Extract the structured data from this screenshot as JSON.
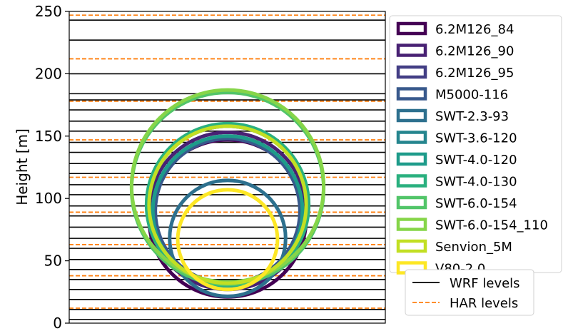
{
  "chart_data": {
    "type": "line",
    "ylabel": "Height [m]",
    "ylim": [
      0,
      250
    ],
    "yticks": [
      0,
      50,
      100,
      150,
      200,
      250
    ],
    "ytick_labels": [
      "0",
      "50",
      "100",
      "150",
      "200",
      "250"
    ],
    "wrf_levels": [
      3,
      11,
      19,
      27,
      35,
      43,
      51,
      60,
      68,
      77,
      86,
      94,
      103,
      111,
      120,
      128,
      137,
      145,
      154,
      162,
      171,
      179,
      184,
      200,
      227,
      243
    ],
    "har_levels": [
      12,
      38,
      63,
      89,
      117,
      147,
      178,
      212,
      247
    ],
    "turbines": [
      {
        "name": "6.2M126_84",
        "hub_height": 84,
        "rotor_diameter": 126,
        "color": "#440154"
      },
      {
        "name": "6.2M126_90",
        "hub_height": 90,
        "rotor_diameter": 126,
        "color": "#482173"
      },
      {
        "name": "6.2M126_95",
        "hub_height": 95,
        "rotor_diameter": 126,
        "color": "#433e85"
      },
      {
        "name": "M5000-116",
        "hub_height": 90,
        "rotor_diameter": 116,
        "color": "#38598c"
      },
      {
        "name": "SWT-2.3-93",
        "hub_height": 68,
        "rotor_diameter": 93,
        "color": "#2d708e"
      },
      {
        "name": "SWT-3.6-120",
        "hub_height": 90,
        "rotor_diameter": 120,
        "color": "#25858e"
      },
      {
        "name": "SWT-4.0-120",
        "hub_height": 90,
        "rotor_diameter": 120,
        "color": "#1e9b8a"
      },
      {
        "name": "SWT-4.0-130",
        "hub_height": 95,
        "rotor_diameter": 130,
        "color": "#2ab07f"
      },
      {
        "name": "SWT-6.0-154",
        "hub_height": 108,
        "rotor_diameter": 154,
        "color": "#52c569"
      },
      {
        "name": "SWT-6.0-154_110",
        "hub_height": 110,
        "rotor_diameter": 154,
        "color": "#86d549"
      },
      {
        "name": "Senvion_5M",
        "hub_height": 95,
        "rotor_diameter": 126,
        "color": "#c2df23"
      },
      {
        "name": "V80-2.0",
        "hub_height": 67,
        "rotor_diameter": 80,
        "color": "#fde725"
      }
    ],
    "legend_lines": [
      {
        "name": "WRF levels",
        "color": "#000000",
        "style": "solid"
      },
      {
        "name": "HAR levels",
        "color": "#ff7f0e",
        "style": "dashed"
      }
    ],
    "legend_position": "right-outside"
  }
}
